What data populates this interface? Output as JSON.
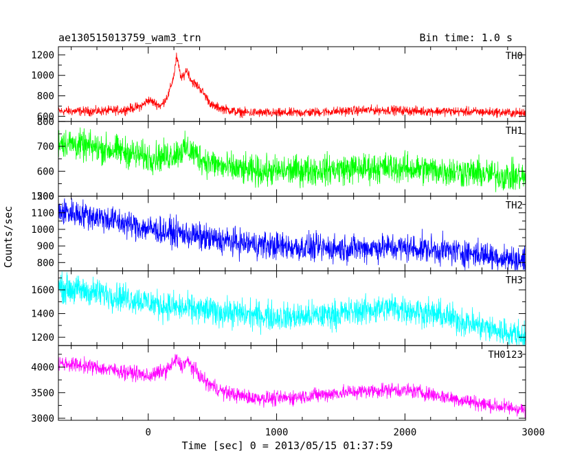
{
  "chart_data": {
    "type": "line",
    "title": "ae130515013759_wam3_trn",
    "bin_label": "Bin time: 1.0 s",
    "xlabel": "Time [sec] 0 = 2013/05/15 01:37:59",
    "ylabel": "Counts/sec",
    "xlim": [
      -700,
      2940
    ],
    "xticks": [
      0,
      1000,
      2000,
      3000
    ],
    "xtick_labels": [
      "0",
      "1000",
      "2000",
      "3000"
    ],
    "panels": [
      {
        "name": "TH0",
        "color": "#ff0000",
        "ylim": [
          550,
          1280
        ],
        "yticks": [
          600,
          800,
          1000,
          1200
        ],
        "ytick_labels": [
          "600",
          "800",
          "1000",
          "1200"
        ],
        "x": [
          -700,
          -400,
          -200,
          -50,
          0,
          100,
          160,
          200,
          220,
          260,
          300,
          340,
          400,
          500,
          700,
          1000,
          1300,
          1500,
          1700,
          1900,
          2100,
          2300,
          2500,
          2700,
          2940
        ],
        "y": [
          650,
          650,
          660,
          700,
          760,
          700,
          820,
          1000,
          1180,
          960,
          1060,
          940,
          880,
          700,
          640,
          630,
          640,
          650,
          660,
          660,
          650,
          650,
          645,
          640,
          630
        ],
        "noise": 60
      },
      {
        "name": "TH1",
        "color": "#00ff00",
        "ylim": [
          500,
          800
        ],
        "yticks": [
          500,
          600,
          700,
          800
        ],
        "ytick_labels": [
          "500",
          "600",
          "700",
          "800"
        ],
        "x": [
          -700,
          -500,
          -200,
          0,
          150,
          300,
          450,
          600,
          800,
          1000,
          1300,
          1600,
          1900,
          2200,
          2500,
          2700,
          2940
        ],
        "y": [
          720,
          700,
          680,
          655,
          660,
          690,
          640,
          615,
          600,
          600,
          605,
          610,
          615,
          605,
          595,
          585,
          575
        ],
        "noise": 80
      },
      {
        "name": "TH2",
        "color": "#0000ff",
        "ylim": [
          750,
          1200
        ],
        "yticks": [
          800,
          900,
          1000,
          1100,
          1200
        ],
        "ytick_labels": [
          "800",
          "900",
          "1000",
          "1100",
          "1200"
        ],
        "x": [
          -700,
          -500,
          -300,
          -100,
          100,
          300,
          500,
          700,
          900,
          1200,
          1500,
          1800,
          2000,
          2200,
          2400,
          2600,
          2800,
          2940
        ],
        "y": [
          1110,
          1090,
          1060,
          1020,
          990,
          970,
          940,
          920,
          905,
          890,
          885,
          890,
          890,
          880,
          865,
          850,
          825,
          810
        ],
        "noise": 110
      },
      {
        "name": "TH3",
        "color": "#00ffff",
        "ylim": [
          1130,
          1760
        ],
        "yticks": [
          1200,
          1400,
          1600
        ],
        "ytick_labels": [
          "1200",
          "1400",
          "1600"
        ],
        "x": [
          -700,
          -500,
          -300,
          -100,
          100,
          300,
          500,
          700,
          900,
          1100,
          1300,
          1500,
          1700,
          1900,
          2100,
          2300,
          2500,
          2700,
          2940
        ],
        "y": [
          1620,
          1590,
          1560,
          1520,
          1470,
          1440,
          1420,
          1400,
          1380,
          1370,
          1380,
          1400,
          1430,
          1450,
          1420,
          1380,
          1320,
          1260,
          1210
        ],
        "noise": 160
      },
      {
        "name": "TH0123",
        "color": "#ff00ff",
        "ylim": [
          2960,
          4420
        ],
        "yticks": [
          3000,
          3500,
          4000
        ],
        "ytick_labels": [
          "3000",
          "3500",
          "4000"
        ],
        "x": [
          -700,
          -500,
          -300,
          -100,
          0,
          150,
          220,
          260,
          300,
          360,
          450,
          600,
          800,
          1000,
          1300,
          1600,
          1900,
          2100,
          2300,
          2500,
          2700,
          2940
        ],
        "y": [
          4080,
          4030,
          3950,
          3880,
          3820,
          3950,
          4150,
          4000,
          4120,
          3950,
          3700,
          3500,
          3400,
          3380,
          3450,
          3520,
          3560,
          3520,
          3420,
          3330,
          3240,
          3170
        ],
        "noise": 190
      }
    ]
  }
}
